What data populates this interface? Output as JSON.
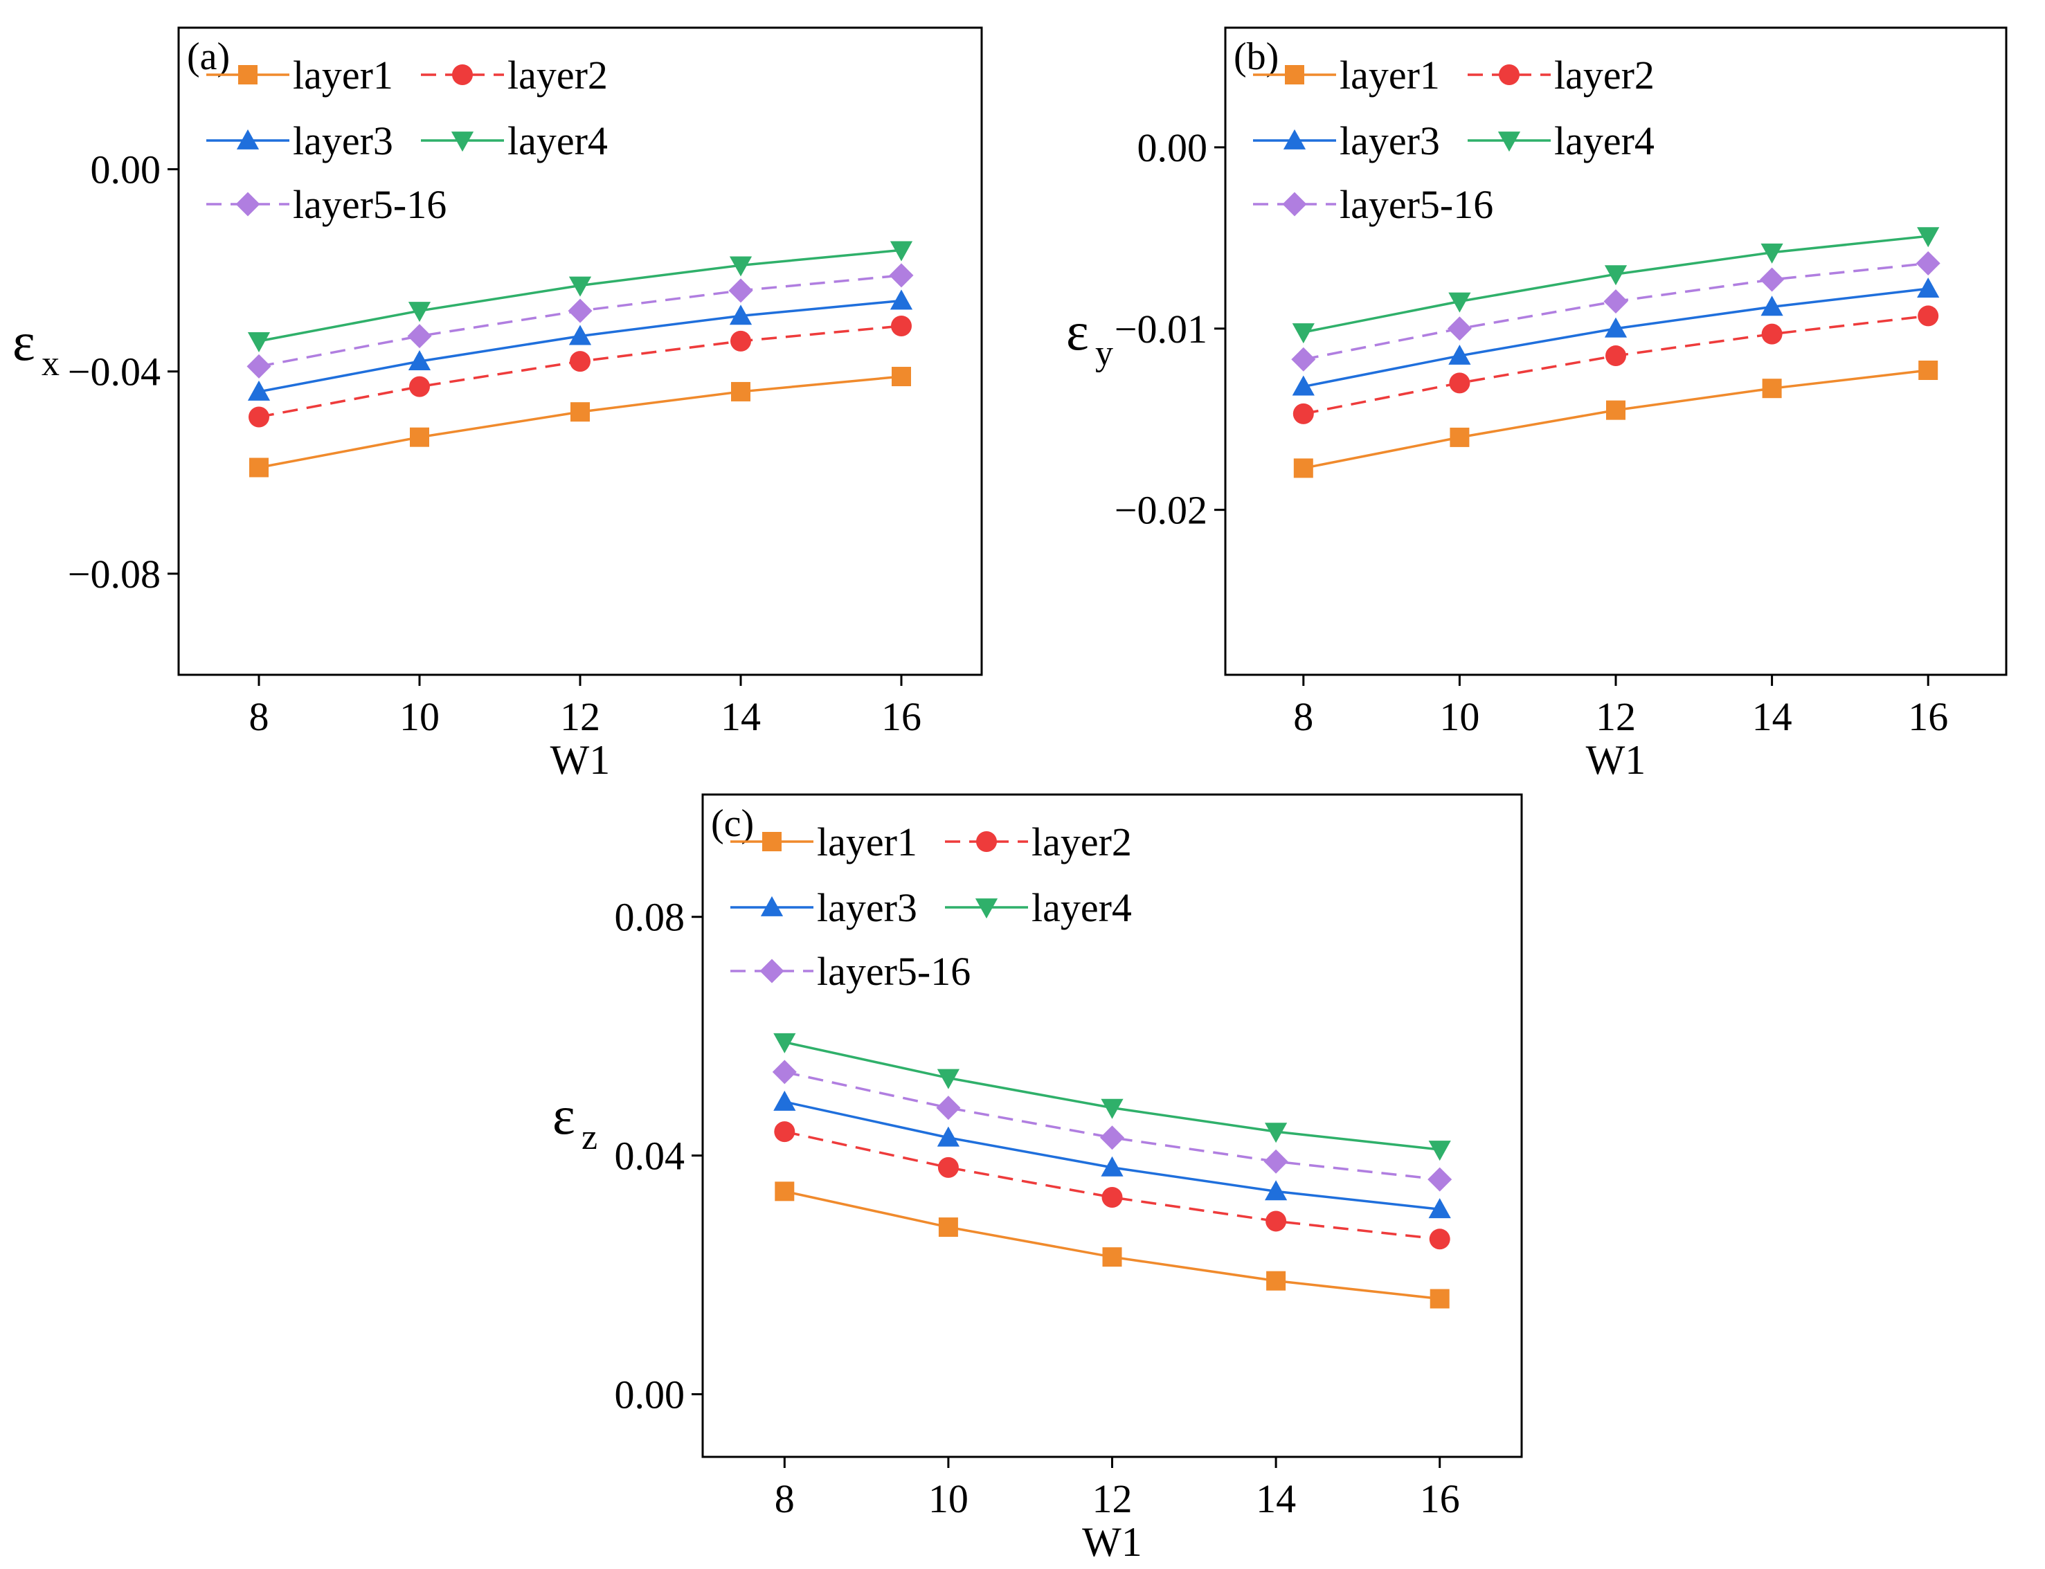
{
  "chart_data": [
    {
      "type": "line",
      "panel_label": "(a)",
      "xlabel": "W1",
      "ylabel_symbol": "ε",
      "ylabel_subscript": "x",
      "x": [
        8,
        10,
        12,
        14,
        16
      ],
      "x_ticks": [
        "8",
        "10",
        "12",
        "14",
        "16"
      ],
      "xlim": [
        7,
        17
      ],
      "ylim": [
        -0.1,
        0.028
      ],
      "y_ticks": [
        0.0,
        -0.04,
        -0.08
      ],
      "y_tick_labels": [
        "0.00",
        "−0.04",
        "−0.08"
      ],
      "legend_position": "top-left",
      "grid": false,
      "series": [
        {
          "name": "layer1",
          "values": [
            -0.059,
            -0.053,
            -0.048,
            -0.044,
            -0.041
          ]
        },
        {
          "name": "layer2",
          "values": [
            -0.049,
            -0.043,
            -0.038,
            -0.034,
            -0.031
          ]
        },
        {
          "name": "layer3",
          "values": [
            -0.044,
            -0.038,
            -0.033,
            -0.029,
            -0.026
          ]
        },
        {
          "name": "layer4",
          "values": [
            -0.034,
            -0.028,
            -0.023,
            -0.019,
            -0.016
          ]
        },
        {
          "name": "layer5-16",
          "values": [
            -0.039,
            -0.033,
            -0.028,
            -0.024,
            -0.021
          ]
        }
      ]
    },
    {
      "type": "line",
      "panel_label": "(b)",
      "xlabel": "W1",
      "ylabel_symbol": "ε",
      "ylabel_subscript": "y",
      "x": [
        8,
        10,
        12,
        14,
        16
      ],
      "x_ticks": [
        "8",
        "10",
        "12",
        "14",
        "16"
      ],
      "xlim": [
        7,
        17
      ],
      "ylim": [
        -0.0291,
        0.0066
      ],
      "y_ticks": [
        0.0,
        -0.01,
        -0.02
      ],
      "y_tick_labels": [
        "0.00",
        "−0.01",
        "−0.02"
      ],
      "legend_position": "top-left",
      "grid": false,
      "series": [
        {
          "name": "layer1",
          "values": [
            -0.0177,
            -0.016,
            -0.0145,
            -0.0133,
            -0.0123
          ]
        },
        {
          "name": "layer2",
          "values": [
            -0.0147,
            -0.013,
            -0.0115,
            -0.0103,
            -0.0093
          ]
        },
        {
          "name": "layer3",
          "values": [
            -0.0132,
            -0.0115,
            -0.01,
            -0.0088,
            -0.0078
          ]
        },
        {
          "name": "layer4",
          "values": [
            -0.0102,
            -0.0085,
            -0.007,
            -0.0058,
            -0.0049
          ]
        },
        {
          "name": "layer5-16",
          "values": [
            -0.0117,
            -0.01,
            -0.0085,
            -0.0073,
            -0.0064
          ]
        }
      ]
    },
    {
      "type": "line",
      "panel_label": "(c)",
      "xlabel": "W1",
      "ylabel_symbol": "ε",
      "ylabel_subscript": "z",
      "x": [
        8,
        10,
        12,
        14,
        16
      ],
      "x_ticks": [
        "8",
        "10",
        "12",
        "14",
        "16"
      ],
      "xlim": [
        7,
        17
      ],
      "ylim": [
        -0.0105,
        0.1005
      ],
      "y_ticks": [
        0.08,
        0.04,
        0.0
      ],
      "y_tick_labels": [
        "0.08",
        "0.04",
        "0.00"
      ],
      "legend_position": "top-left",
      "grid": false,
      "series": [
        {
          "name": "layer1",
          "values": [
            0.034,
            0.028,
            0.023,
            0.019,
            0.016
          ]
        },
        {
          "name": "layer2",
          "values": [
            0.044,
            0.038,
            0.033,
            0.029,
            0.026
          ]
        },
        {
          "name": "layer3",
          "values": [
            0.049,
            0.043,
            0.038,
            0.034,
            0.031
          ]
        },
        {
          "name": "layer4",
          "values": [
            0.059,
            0.053,
            0.048,
            0.044,
            0.041
          ]
        },
        {
          "name": "layer5-16",
          "values": [
            0.054,
            0.048,
            0.043,
            0.039,
            0.036
          ]
        }
      ]
    }
  ],
  "series_styles": [
    {
      "color": "#f08a2c",
      "dash": "solid",
      "marker": "square"
    },
    {
      "color": "#ee3b3b",
      "dash": "dashed",
      "marker": "circle"
    },
    {
      "color": "#1f6fdc",
      "dash": "solid",
      "marker": "triangle-up"
    },
    {
      "color": "#2fb06a",
      "dash": "solid",
      "marker": "triangle-down"
    },
    {
      "color": "#b07ee0",
      "dash": "dashed",
      "marker": "diamond"
    }
  ]
}
